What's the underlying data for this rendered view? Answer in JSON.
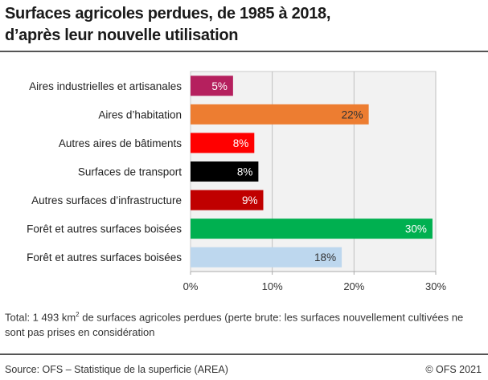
{
  "title_line1": "Surfaces agricoles perdues, de 1985 à 2018,",
  "title_line2": "d’après leur nouvelle utilisation",
  "note": {
    "prefix": "Total: 1 493 km",
    "sup": "2",
    "suffix": " de surfaces agricoles perdues (perte brute: les surfaces nouvellement cultivées ne sont pas prises en considération"
  },
  "source": "Source: OFS – Statistique de la superficie (AREA)",
  "copyright": "© OFS 2021",
  "chart_data": {
    "type": "bar",
    "orientation": "horizontal",
    "categories": [
      "Aires industrielles et artisanales",
      "Aires d’habitation",
      "Autres aires de bâtiments",
      "Surfaces de transport",
      "Autres surfaces d’infrastructure",
      "Forêt et autres surfaces boisées",
      "Forêt et autres surfaces boisées"
    ],
    "values": [
      5.2,
      21.8,
      7.8,
      8.3,
      8.9,
      29.6,
      18.5
    ],
    "data_labels": [
      "5%",
      "22%",
      "8%",
      "8%",
      "9%",
      "30%",
      "18%"
    ],
    "colors": [
      "#b5205e",
      "#ed7d31",
      "#ff0000",
      "#000000",
      "#c00000",
      "#00b050",
      "#bdd7ee"
    ],
    "label_colors": [
      "#ffffff",
      "#333333",
      "#ffffff",
      "#ffffff",
      "#ffffff",
      "#ffffff",
      "#333333"
    ],
    "xlim": [
      0,
      30
    ],
    "xticks": [
      0,
      10,
      20,
      30
    ],
    "xtick_labels": [
      "0%",
      "10%",
      "20%",
      "30%"
    ],
    "grid": true,
    "plot_background": "#f2f2f2"
  }
}
